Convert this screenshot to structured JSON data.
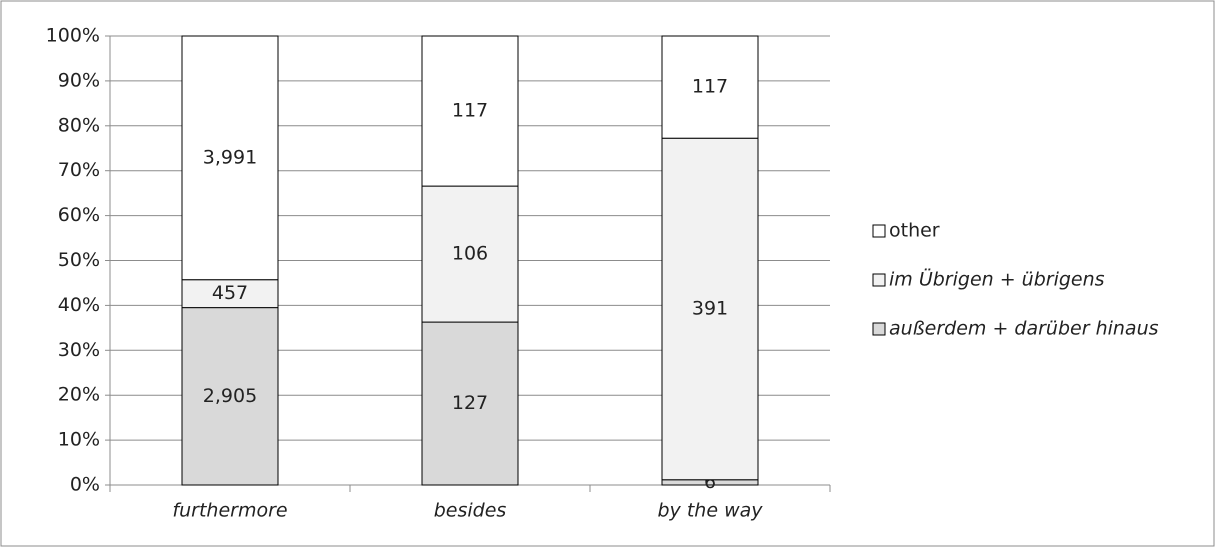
{
  "chart_data": {
    "type": "bar",
    "stacked": "percent",
    "categories": [
      "furthermore",
      "besides",
      "by the way"
    ],
    "series": [
      {
        "name": "außerdem + darüber hinaus",
        "color": "#d9d9d9",
        "values": [
          2905,
          127,
          6
        ],
        "value_labels": [
          "2,905",
          "127",
          "6"
        ]
      },
      {
        "name": "im Übrigen + übrigens",
        "color": "#f2f2f2",
        "values": [
          457,
          106,
          391
        ],
        "value_labels": [
          "457",
          "106",
          "391"
        ]
      },
      {
        "name": "other",
        "color": "#ffffff",
        "values": [
          3991,
          117,
          117
        ],
        "value_labels": [
          "3,991",
          "117",
          "117"
        ]
      }
    ],
    "ylim": [
      0,
      100
    ],
    "yticks": [
      {
        "value": 0,
        "label": "0%"
      },
      {
        "value": 10,
        "label": "10%"
      },
      {
        "value": 20,
        "label": "20%"
      },
      {
        "value": 30,
        "label": "30%"
      },
      {
        "value": 40,
        "label": "40%"
      },
      {
        "value": 50,
        "label": "50%"
      },
      {
        "value": 60,
        "label": "60%"
      },
      {
        "value": 70,
        "label": "70%"
      },
      {
        "value": 80,
        "label": "80%"
      },
      {
        "value": 90,
        "label": "90%"
      },
      {
        "value": 100,
        "label": "100%"
      }
    ],
    "grid": true,
    "legend": "right"
  }
}
